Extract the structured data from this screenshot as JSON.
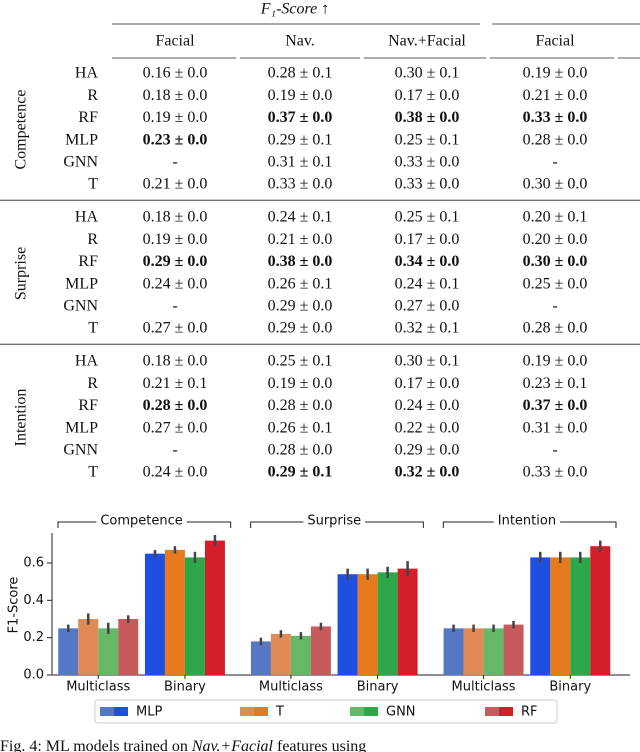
{
  "table": {
    "header": {
      "title": "F₁-Score ↑",
      "columns": [
        "Facial",
        "Nav.",
        "Nav.+Facial",
        "Facial"
      ]
    },
    "groups": [
      {
        "label": "Competence",
        "rows": [
          {
            "model": "HA",
            "cells": [
              "0.16 ± 0.0",
              "0.28 ± 0.1",
              "0.30 ± 0.1",
              "0.19 ± 0.0"
            ],
            "bold": []
          },
          {
            "model": "R",
            "cells": [
              "0.18 ± 0.0",
              "0.19 ± 0.0",
              "0.17 ± 0.0",
              "0.21 ± 0.0"
            ],
            "bold": []
          },
          {
            "model": "RF",
            "cells": [
              "0.19 ± 0.0",
              "0.37 ± 0.0",
              "0.38 ± 0.0",
              "0.33 ± 0.0"
            ],
            "bold": [
              1,
              2,
              3
            ]
          },
          {
            "model": "MLP",
            "cells": [
              "0.23 ± 0.0",
              "0.29 ± 0.1",
              "0.25 ± 0.1",
              "0.28 ± 0.0"
            ],
            "bold": [
              0
            ]
          },
          {
            "model": "GNN",
            "cells": [
              "-",
              "0.31 ± 0.1",
              "0.33 ± 0.0",
              "-"
            ],
            "bold": []
          },
          {
            "model": "T",
            "cells": [
              "0.21 ± 0.0",
              "0.33 ± 0.0",
              "0.33 ± 0.0",
              "0.30 ± 0.0"
            ],
            "bold": []
          }
        ]
      },
      {
        "label": "Surprise",
        "rows": [
          {
            "model": "HA",
            "cells": [
              "0.18 ± 0.0",
              "0.24 ± 0.1",
              "0.25 ± 0.1",
              "0.20 ± 0.1"
            ],
            "bold": []
          },
          {
            "model": "R",
            "cells": [
              "0.19 ± 0.0",
              "0.21 ± 0.0",
              "0.17 ± 0.0",
              "0.20 ± 0.0"
            ],
            "bold": []
          },
          {
            "model": "RF",
            "cells": [
              "0.29 ± 0.0",
              "0.38 ± 0.0",
              "0.34 ± 0.0",
              "0.30 ± 0.0"
            ],
            "bold": [
              0,
              1,
              2,
              3
            ]
          },
          {
            "model": "MLP",
            "cells": [
              "0.24 ± 0.0",
              "0.26 ± 0.1",
              "0.24 ± 0.1",
              "0.25 ± 0.0"
            ],
            "bold": []
          },
          {
            "model": "GNN",
            "cells": [
              "-",
              "0.29 ± 0.0",
              "0.27 ± 0.0",
              "-"
            ],
            "bold": []
          },
          {
            "model": "T",
            "cells": [
              "0.27 ± 0.0",
              "0.29 ± 0.0",
              "0.32 ± 0.1",
              "0.28 ± 0.0"
            ],
            "bold": []
          }
        ]
      },
      {
        "label": "Intention",
        "rows": [
          {
            "model": "HA",
            "cells": [
              "0.18 ± 0.0",
              "0.25 ± 0.1",
              "0.30 ± 0.1",
              "0.19 ± 0.0"
            ],
            "bold": []
          },
          {
            "model": "R",
            "cells": [
              "0.21 ± 0.1",
              "0.19 ± 0.0",
              "0.17 ± 0.0",
              "0.23 ± 0.1"
            ],
            "bold": []
          },
          {
            "model": "RF",
            "cells": [
              "0.28 ± 0.0",
              "0.28 ± 0.0",
              "0.24 ± 0.0",
              "0.37 ± 0.0"
            ],
            "bold": [
              0,
              3
            ]
          },
          {
            "model": "MLP",
            "cells": [
              "0.27 ± 0.0",
              "0.26 ± 0.1",
              "0.22 ± 0.0",
              "0.31 ± 0.0"
            ],
            "bold": []
          },
          {
            "model": "GNN",
            "cells": [
              "-",
              "0.28 ± 0.0",
              "0.29 ± 0.0",
              "-"
            ],
            "bold": []
          },
          {
            "model": "T",
            "cells": [
              "0.24 ± 0.0",
              "0.29 ± 0.1",
              "0.32 ± 0.0",
              "0.33 ± 0.0"
            ],
            "bold": [
              1,
              2
            ]
          }
        ]
      }
    ]
  },
  "chart_data": {
    "type": "bar",
    "y_label": "F1-Score",
    "groups": [
      "Competence",
      "Surprise",
      "Intention"
    ],
    "categories": [
      "Multiclass",
      "Binary",
      "Multiclass",
      "Binary",
      "Multiclass",
      "Binary"
    ],
    "ylim": [
      0,
      0.75
    ],
    "yticks": [
      {
        "value": 0,
        "label": "0.0"
      },
      0.2,
      0.4,
      0.6
    ],
    "series": [
      {
        "name": "MLP",
        "color": "#1f4fe0",
        "light_color": "#5577c4",
        "values": [
          0.25,
          0.65,
          0.18,
          0.54,
          0.25,
          0.63
        ],
        "errors": [
          0.02,
          0.02,
          0.02,
          0.03,
          0.02,
          0.03
        ]
      },
      {
        "name": "T",
        "color": "#e87a1e",
        "light_color": "#e08a55",
        "values": [
          0.3,
          0.67,
          0.22,
          0.54,
          0.25,
          0.63
        ],
        "errors": [
          0.03,
          0.02,
          0.02,
          0.03,
          0.02,
          0.03
        ]
      },
      {
        "name": "GNN",
        "color": "#2ca848",
        "light_color": "#66b866",
        "values": [
          0.25,
          0.63,
          0.21,
          0.55,
          0.25,
          0.63
        ],
        "errors": [
          0.03,
          0.03,
          0.02,
          0.03,
          0.02,
          0.03
        ]
      },
      {
        "name": "RF",
        "color": "#d41f2a",
        "light_color": "#c85a5e",
        "values": [
          0.3,
          0.72,
          0.26,
          0.57,
          0.27,
          0.69
        ],
        "errors": [
          0.02,
          0.03,
          0.02,
          0.04,
          0.02,
          0.03
        ]
      }
    ]
  },
  "caption": {
    "prefix": "Fig. 4: ML models trained on ",
    "emphasis": "Nav.+Facial",
    "suffix": " features using"
  }
}
